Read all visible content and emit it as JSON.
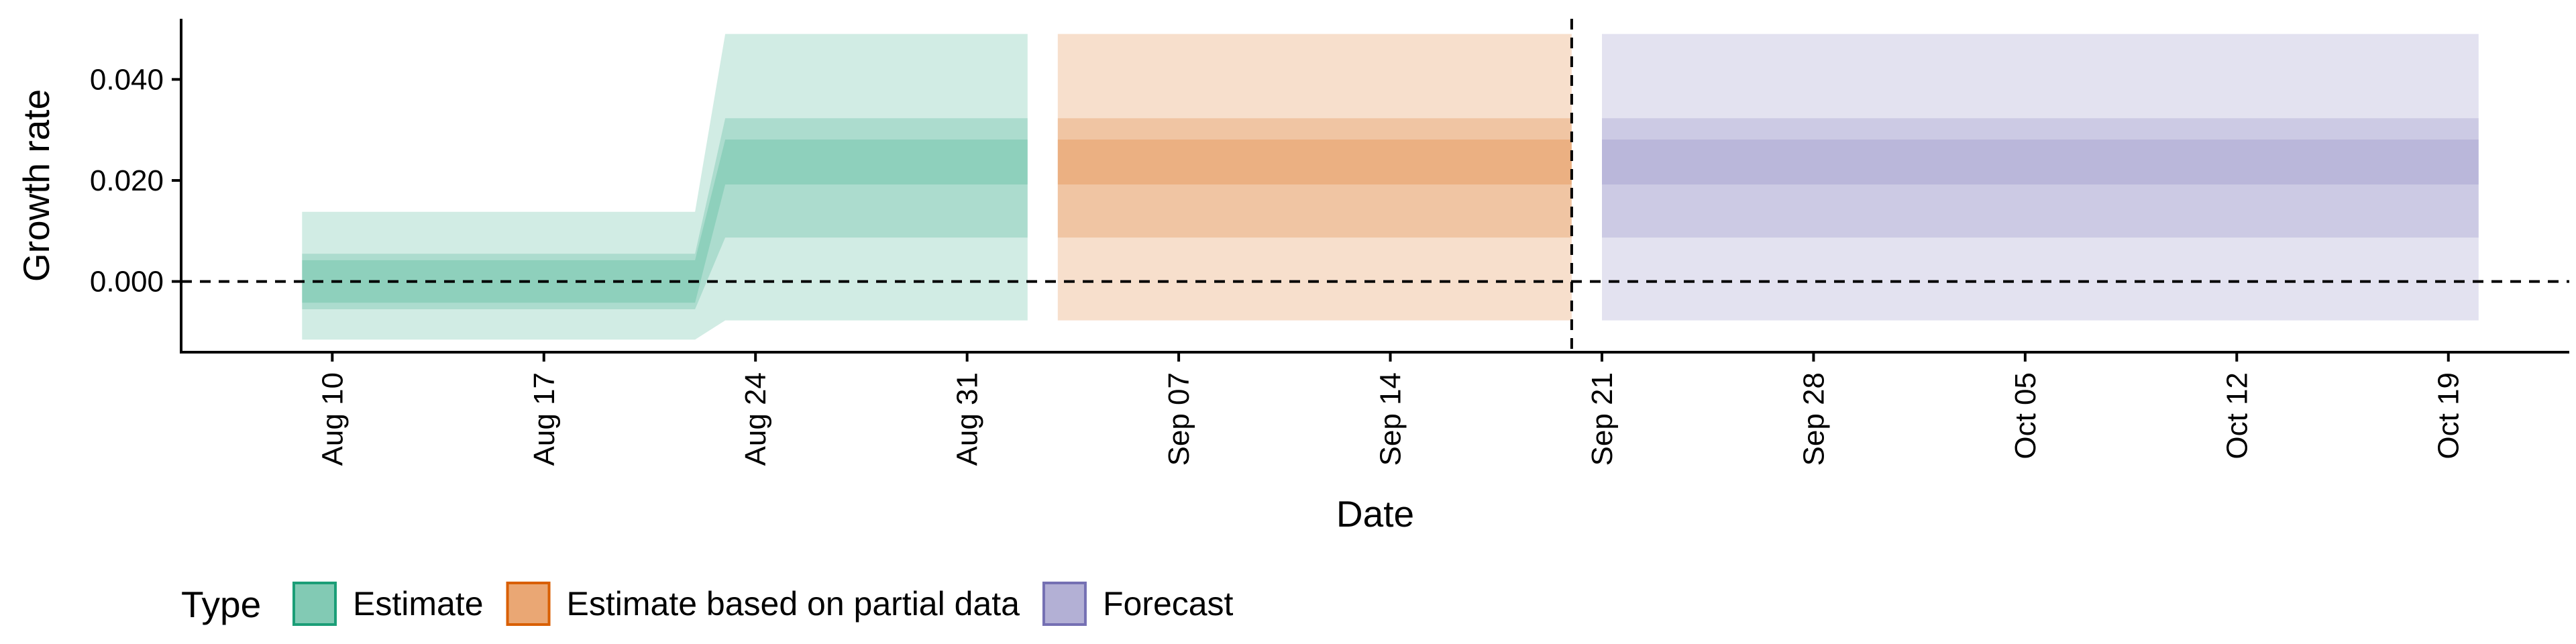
{
  "chart_data": {
    "type": "area",
    "xlabel": "Date",
    "ylabel": "Growth rate",
    "x_ticks": [
      {
        "date": "2020-08-10",
        "label": "Aug 10"
      },
      {
        "date": "2020-08-17",
        "label": "Aug 17"
      },
      {
        "date": "2020-08-24",
        "label": "Aug 24"
      },
      {
        "date": "2020-08-31",
        "label": "Aug 31"
      },
      {
        "date": "2020-09-07",
        "label": "Sep 07"
      },
      {
        "date": "2020-09-14",
        "label": "Sep 14"
      },
      {
        "date": "2020-09-21",
        "label": "Sep 21"
      },
      {
        "date": "2020-09-28",
        "label": "Sep 28"
      },
      {
        "date": "2020-10-05",
        "label": "Oct 05"
      },
      {
        "date": "2020-10-12",
        "label": "Oct 12"
      },
      {
        "date": "2020-10-19",
        "label": "Oct 19"
      }
    ],
    "y_ticks": [
      {
        "value": 0.0,
        "label": "0.000"
      },
      {
        "value": 0.02,
        "label": "0.020"
      },
      {
        "value": 0.04,
        "label": "0.040"
      }
    ],
    "xlim": [
      "2020-08-05",
      "2020-10-23"
    ],
    "ylim": [
      -0.014,
      0.052
    ],
    "hline": 0.0,
    "vline": "2020-09-20",
    "grid": false,
    "legend": {
      "title": "Type",
      "position": "bottom-left",
      "items": [
        "Estimate",
        "Estimate based on partial data",
        "Forecast"
      ]
    },
    "series": [
      {
        "type_label": "Estimate",
        "color": "#1b9e77",
        "points": [
          {
            "x": "2020-08-09",
            "lower_90": -0.0115,
            "upper_90": 0.0138,
            "lower_50": -0.0055,
            "upper_50": 0.0055,
            "lower_20": -0.0042,
            "upper_20": 0.0042
          },
          {
            "x": "2020-08-22",
            "lower_90": -0.0115,
            "upper_90": 0.0138,
            "lower_50": -0.0055,
            "upper_50": 0.0055,
            "lower_20": -0.0042,
            "upper_20": 0.0042
          },
          {
            "x": "2020-08-23",
            "lower_90": -0.0077,
            "upper_90": 0.049,
            "lower_50": 0.0087,
            "upper_50": 0.0323,
            "lower_20": 0.0192,
            "upper_20": 0.0281
          },
          {
            "x": "2020-09-02",
            "lower_90": -0.0077,
            "upper_90": 0.049,
            "lower_50": 0.0087,
            "upper_50": 0.0323,
            "lower_20": 0.0192,
            "upper_20": 0.0281
          }
        ]
      },
      {
        "type_label": "Estimate based on partial data",
        "color": "#d95f02",
        "points": [
          {
            "x": "2020-09-03",
            "lower_90": -0.0077,
            "upper_90": 0.049,
            "lower_50": 0.0087,
            "upper_50": 0.0323,
            "lower_20": 0.0192,
            "upper_20": 0.0281
          },
          {
            "x": "2020-09-20",
            "lower_90": -0.0077,
            "upper_90": 0.049,
            "lower_50": 0.0087,
            "upper_50": 0.0323,
            "lower_20": 0.0192,
            "upper_20": 0.0281
          }
        ]
      },
      {
        "type_label": "Forecast",
        "color": "#7570b3",
        "points": [
          {
            "x": "2020-09-21",
            "lower_90": -0.0077,
            "upper_90": 0.049,
            "lower_50": 0.0087,
            "upper_50": 0.0323,
            "lower_20": 0.0192,
            "upper_20": 0.0281
          },
          {
            "x": "2020-10-20",
            "lower_90": -0.0077,
            "upper_90": 0.049,
            "lower_50": 0.0087,
            "upper_50": 0.0323,
            "lower_20": 0.0192,
            "upper_20": 0.0281
          }
        ]
      }
    ]
  }
}
